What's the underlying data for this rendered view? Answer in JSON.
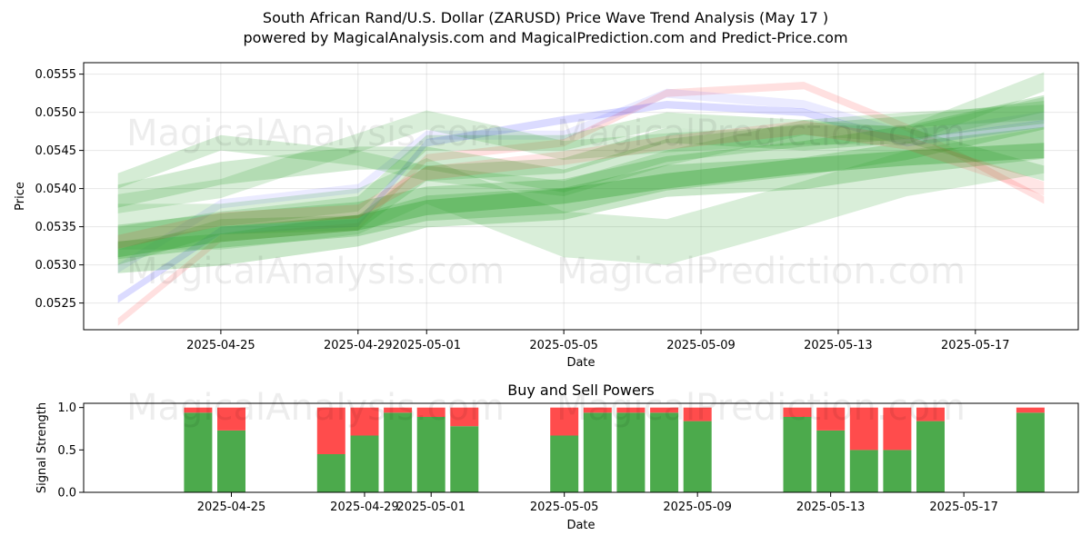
{
  "figure": {
    "title_line1": "South African Rand/U.S. Dollar (ZARUSD) Price Wave Trend Analysis (May 17 )",
    "title_line2": "powered by MagicalAnalysis.com and MagicalPrediction.com and Predict-Price.com",
    "watermarks": [
      "MagicalAnalysis.com",
      "MagicalPrediction.com"
    ]
  },
  "chart_data": [
    {
      "type": "area",
      "title": "",
      "xlabel": "Date",
      "ylabel": "Price",
      "x_tick_labels": [
        "2025-04-25",
        "2025-04-29",
        "2025-05-01",
        "2025-05-05",
        "2025-05-09",
        "2025-05-13",
        "2025-05-17"
      ],
      "y_tick_labels": [
        "0.0525",
        "0.0530",
        "0.0535",
        "0.0540",
        "0.0545",
        "0.0550",
        "0.0555"
      ],
      "xlim": [
        "2025-04-21",
        "2025-05-20"
      ],
      "ylim": [
        0.05215,
        0.05565
      ],
      "grid": true,
      "colors": {
        "green": "#2ca02c",
        "blue": "#0000ff",
        "red": "#ff0000"
      },
      "dates": [
        "2025-04-22",
        "2025-04-25",
        "2025-04-29",
        "2025-05-01",
        "2025-05-05",
        "2025-05-08",
        "2025-05-12",
        "2025-05-15",
        "2025-05-19"
      ],
      "bands": [
        {
          "color": "red",
          "opacity": 0.12,
          "values": [
            0.05225,
            0.05335,
            0.0535,
            0.0544,
            0.0546,
            0.05525,
            0.05535,
            0.0548,
            0.05385
          ],
          "width": 0.0001
        },
        {
          "color": "blue",
          "opacity": 0.14,
          "values": [
            0.05255,
            0.05345,
            0.05355,
            0.0546,
            0.0549,
            0.0551,
            0.055,
            0.0546,
            0.05485
          ],
          "width": 0.0001
        },
        {
          "color": "blue",
          "opacity": 0.08,
          "values": [
            0.05295,
            0.0538,
            0.054,
            0.0547,
            0.0547,
            0.05525,
            0.0551,
            0.0547,
            0.05495
          ],
          "width": 0.00012
        },
        {
          "color": "green",
          "opacity": 0.25,
          "values": [
            0.0533,
            0.05345,
            0.0536,
            0.0538,
            0.0539,
            0.0542,
            0.0544,
            0.0546,
            0.055
          ],
          "width": 0.00045
        },
        {
          "color": "green",
          "opacity": 0.25,
          "values": [
            0.0531,
            0.0532,
            0.05345,
            0.0537,
            0.0538,
            0.0541,
            0.0542,
            0.0544,
            0.0546
          ],
          "width": 0.00042
        },
        {
          "color": "green",
          "opacity": 0.35,
          "values": [
            0.0532,
            0.0534,
            0.05355,
            0.05375,
            0.0539,
            0.0541,
            0.0543,
            0.0544,
            0.0545
          ],
          "width": 0.0002
        },
        {
          "color": "green",
          "opacity": 0.22,
          "values": [
            0.0539,
            0.0542,
            0.0544,
            0.0544,
            0.0541,
            0.0545,
            0.0547,
            0.0548,
            0.055
          ],
          "width": 0.0003
        },
        {
          "color": "green",
          "opacity": 0.2,
          "values": [
            0.0541,
            0.0546,
            0.0544,
            0.0542,
            0.054,
            0.0544,
            0.0548,
            0.0549,
            0.055
          ],
          "width": 0.0002
        },
        {
          "color": "green",
          "opacity": 0.18,
          "values": [
            0.0535,
            0.0535,
            0.0537,
            0.0541,
            0.0534,
            0.0533,
            0.0538,
            0.0542,
            0.0545
          ],
          "width": 0.0006
        },
        {
          "color": "green",
          "opacity": 0.2,
          "values": [
            0.0534,
            0.0536,
            0.0538,
            0.0546,
            0.0546,
            0.0549,
            0.0548,
            0.0547,
            0.0551
          ],
          "width": 0.0002
        },
        {
          "color": "green",
          "opacity": 0.18,
          "values": [
            0.0538,
            0.054,
            0.0546,
            0.0549,
            0.0545,
            0.0546,
            0.0547,
            0.0547,
            0.0554
          ],
          "width": 0.00025
        },
        {
          "color": "green",
          "opacity": 0.22,
          "values": [
            0.0531,
            0.0535,
            0.05355,
            0.0542,
            0.0543,
            0.0547,
            0.0546,
            0.0547,
            0.0542
          ],
          "width": 0.0002
        },
        {
          "color": "red",
          "opacity": 0.1,
          "values": [
            0.0533,
            0.0536,
            0.0537,
            0.0542,
            0.0544,
            0.0546,
            0.0548,
            0.0546,
            0.054
          ],
          "width": 0.00018
        }
      ]
    },
    {
      "type": "bar",
      "title": "Buy and Sell Powers",
      "xlabel": "Date",
      "ylabel": "Signal Strength",
      "x_tick_labels": [
        "2025-04-25",
        "2025-04-29",
        "2025-05-01",
        "2025-05-05",
        "2025-05-09",
        "2025-05-13",
        "2025-05-17"
      ],
      "y_tick_labels": [
        "0.0",
        "0.5",
        "1.0"
      ],
      "ylim": [
        0,
        1.05
      ],
      "series": [
        {
          "name": "Buy",
          "color": "#4caa4c"
        },
        {
          "name": "Sell",
          "color": "#ff4c4c"
        }
      ],
      "categories": [
        "2025-04-24",
        "2025-04-25",
        "2025-04-28",
        "2025-04-29",
        "2025-04-30",
        "2025-05-01",
        "2025-05-02",
        "2025-05-05",
        "2025-05-06",
        "2025-05-07",
        "2025-05-08",
        "2025-05-09",
        "2025-05-12",
        "2025-05-13",
        "2025-05-14",
        "2025-05-15",
        "2025-05-16",
        "2025-05-19"
      ],
      "buy": [
        0.94,
        0.73,
        0.45,
        0.67,
        0.94,
        0.89,
        0.78,
        0.67,
        0.94,
        0.94,
        0.94,
        0.84,
        0.89,
        0.73,
        0.5,
        0.5,
        0.84,
        0.94
      ],
      "sell": [
        0.06,
        0.27,
        0.55,
        0.33,
        0.06,
        0.11,
        0.22,
        0.33,
        0.06,
        0.06,
        0.06,
        0.16,
        0.11,
        0.27,
        0.5,
        0.5,
        0.16,
        0.06
      ]
    }
  ]
}
